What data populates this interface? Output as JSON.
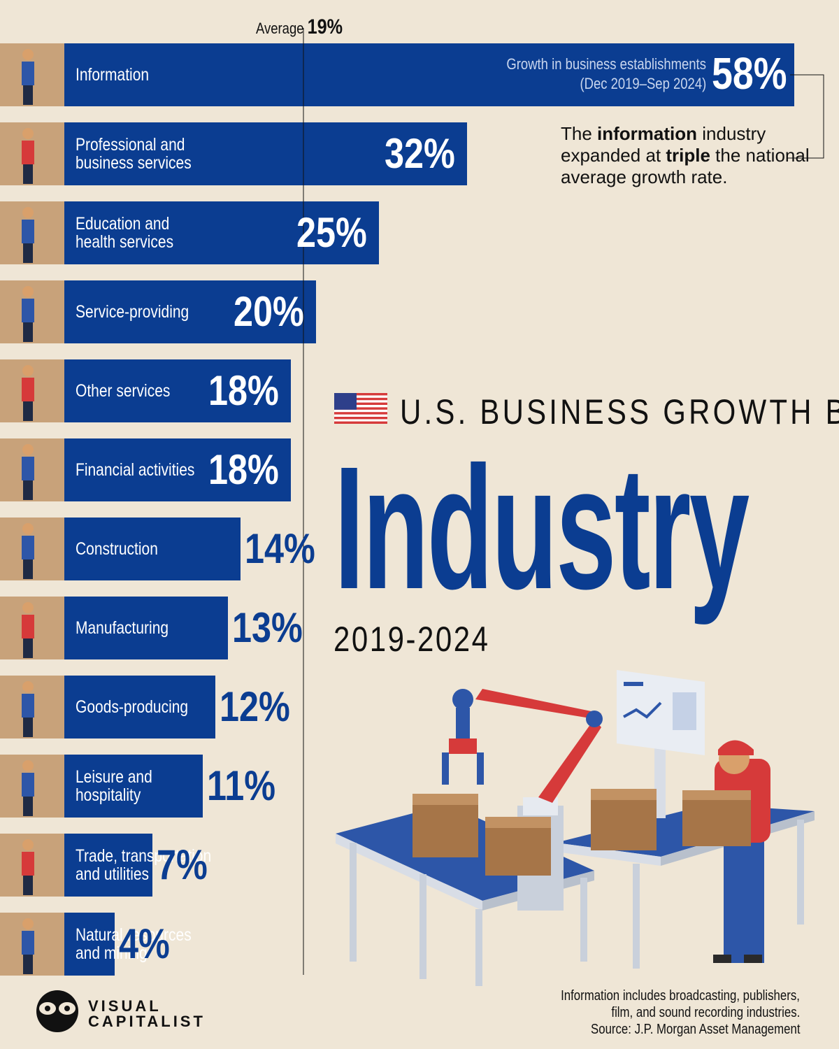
{
  "chart_data": {
    "type": "bar",
    "orientation": "horizontal",
    "title": "U.S. BUSINESS GROWTH BY",
    "title_emphasis": "Industry",
    "subtitle": "2019-2024",
    "series_name": "Growth in business establishments",
    "series_period": "(Dec 2019–Sep 2024)",
    "categories": [
      "Information",
      "Professional and business services",
      "Education and health services",
      "Service-providing",
      "Other services",
      "Financial activities",
      "Construction",
      "Manufacturing",
      "Goods-producing",
      "Leisure and hospitality",
      "Trade, transportation and utilities",
      "Natural resources and mining"
    ],
    "category_lines": [
      [
        "Information"
      ],
      [
        "Professional and",
        "business services"
      ],
      [
        "Education and",
        "health services"
      ],
      [
        "Service-providing"
      ],
      [
        "Other services"
      ],
      [
        "Financial activities"
      ],
      [
        "Construction"
      ],
      [
        "Manufacturing"
      ],
      [
        "Goods-producing"
      ],
      [
        "Leisure and",
        "hospitality"
      ],
      [
        "Trade, transportation",
        "and utilities"
      ],
      [
        "Natural resources",
        "and mining"
      ]
    ],
    "values": [
      58,
      32,
      25,
      20,
      18,
      18,
      14,
      13,
      12,
      11,
      7,
      4
    ],
    "value_labels": [
      "58%",
      "32%",
      "25%",
      "20%",
      "18%",
      "18%",
      "14%",
      "13%",
      "12%",
      "11%",
      "7%",
      "4%"
    ],
    "average": {
      "label": "Average",
      "value": 19,
      "value_label": "19%"
    },
    "xlim": [
      0,
      58
    ],
    "grid": false,
    "legend": "none",
    "annotation": {
      "pre": "The ",
      "bold1": "information",
      "mid": " industry expanded at ",
      "bold2": "triple",
      "post": " the national average growth rate."
    }
  },
  "colors": {
    "background": "#efe6d6",
    "bar": "#0b3d91",
    "accent": "#d63a3a",
    "icon_tile": "#c8a27a"
  },
  "icons": [
    "office-worker-laptop-icon",
    "businesswoman-briefcase-icon",
    "teacher-doctor-icon",
    "delivery-box-icon",
    "gears-worker-icon",
    "finance-chart-icon",
    "construction-worker-icon",
    "robot-arm-icon",
    "worker-crate-icon",
    "bellhop-cart-icon",
    "hand-truck-boxes-icon",
    "shovel-miner-icon"
  ],
  "illustration": "factory-conveyor-robot-arm-illustration",
  "footer": {
    "note1": "Information includes broadcasting, publishers,",
    "note2": "film, and sound recording industries.",
    "source": "Source: J.P. Morgan Asset Management",
    "brand_line1": "VISUAL",
    "brand_line2": "CAPITALIST"
  }
}
